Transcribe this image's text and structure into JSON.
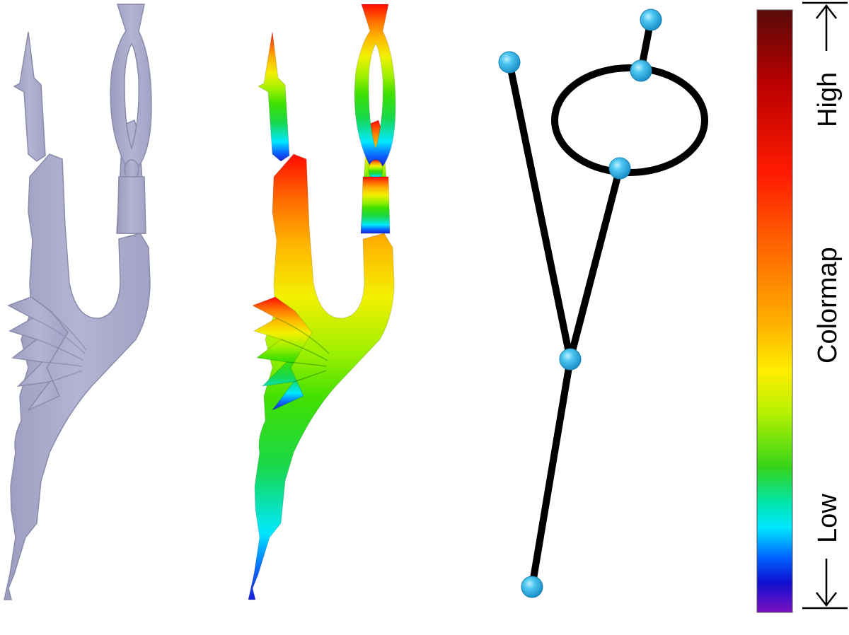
{
  "panels": {
    "mesh": {
      "name": "gray-mesh-model",
      "color": "#aaaacc"
    },
    "colored_mesh": {
      "name": "colormapped-mesh-model"
    },
    "skeleton": {
      "name": "reeb-graph-skeleton",
      "edge_color": "#000000",
      "node_color": "#2eaee6"
    }
  },
  "colormap": {
    "title": "Colormap",
    "high_label": "High",
    "low_label": "Low",
    "stops": [
      "#5a0a0a",
      "#b80000",
      "#ff1a00",
      "#ff6a00",
      "#ffb000",
      "#ffee00",
      "#b4f000",
      "#33d41a",
      "#00e6b0",
      "#00e6ff",
      "#0060ff",
      "#1010d0",
      "#7a10c0"
    ]
  }
}
